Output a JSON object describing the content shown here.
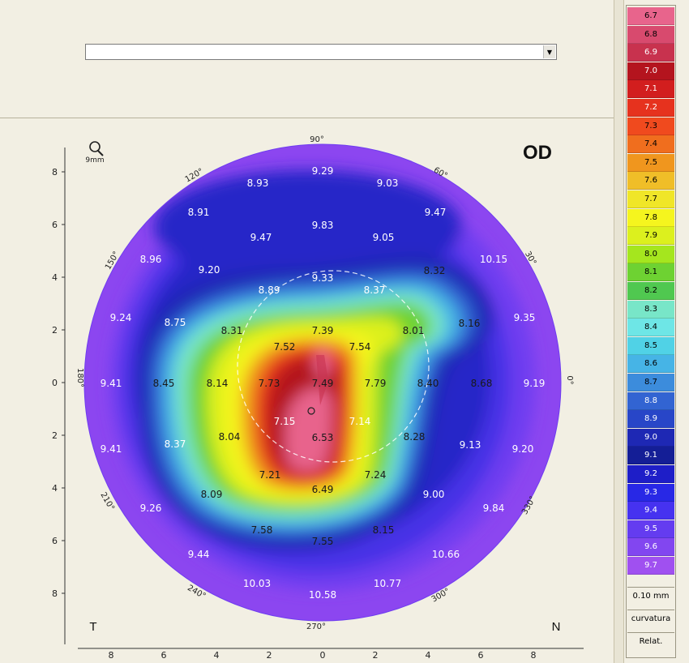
{
  "eye_label": "OD",
  "zoom_label": "9mm",
  "dropdown": {
    "value": ""
  },
  "side_labels": {
    "temporal": "T",
    "nasal": "N"
  },
  "y_axis_ticks": [
    "8",
    "6",
    "4",
    "2",
    "0",
    "2",
    "4",
    "6",
    "8"
  ],
  "x_axis_ticks": [
    "8",
    "6",
    "4",
    "2",
    "0",
    "2",
    "4",
    "6",
    "8"
  ],
  "angle_labels": [
    "90°",
    "60°",
    "30°",
    "0°",
    "330°",
    "300°",
    "270°",
    "240°",
    "210°",
    "180°",
    "150°",
    "120°"
  ],
  "map_values": [
    {
      "label": "9.29",
      "color": "#ffffff"
    },
    {
      "label": "8.93",
      "color": "#ffffff"
    },
    {
      "label": "9.03",
      "color": "#ffffff"
    },
    {
      "label": "8.91",
      "color": "#ffffff"
    },
    {
      "label": "9.83",
      "color": "#ffffff"
    },
    {
      "label": "9.47",
      "color": "#ffffff"
    },
    {
      "label": "9.47",
      "color": "#ffffff"
    },
    {
      "label": "9.05",
      "color": "#ffffff"
    },
    {
      "label": "8.96",
      "color": "#ffffff"
    },
    {
      "label": "10.15",
      "color": "#ffffff"
    },
    {
      "label": "9.20",
      "color": "#ffffff"
    },
    {
      "label": "9.33",
      "color": "#ffffff"
    },
    {
      "label": "8.32",
      "color": "#1a1a1a"
    },
    {
      "label": "8.89",
      "color": "#ffffff"
    },
    {
      "label": "8.37",
      "color": "#ffffff"
    },
    {
      "label": "9.24",
      "color": "#ffffff"
    },
    {
      "label": "8.75",
      "color": "#ffffff"
    },
    {
      "label": "8.31",
      "color": "#1a1a1a"
    },
    {
      "label": "7.39",
      "color": "#1a1a1a"
    },
    {
      "label": "8.01",
      "color": "#1a1a1a"
    },
    {
      "label": "8.16",
      "color": "#1a1a1a"
    },
    {
      "label": "9.35",
      "color": "#ffffff"
    },
    {
      "label": "7.52",
      "color": "#1a1a1a"
    },
    {
      "label": "7.54",
      "color": "#1a1a1a"
    },
    {
      "label": "9.41",
      "color": "#ffffff"
    },
    {
      "label": "8.45",
      "color": "#1a1a1a"
    },
    {
      "label": "8.14",
      "color": "#1a1a1a"
    },
    {
      "label": "7.73",
      "color": "#1a1a1a"
    },
    {
      "label": "7.49",
      "color": "#1a1a1a"
    },
    {
      "label": "7.79",
      "color": "#1a1a1a"
    },
    {
      "label": "8.40",
      "color": "#1a1a1a"
    },
    {
      "label": "8.68",
      "color": "#1a1a1a"
    },
    {
      "label": "9.19",
      "color": "#ffffff"
    },
    {
      "label": "7.15",
      "color": "#ffffff"
    },
    {
      "label": "7.14",
      "color": "#ffffff"
    },
    {
      "label": "6.53",
      "color": "#1a1a1a"
    },
    {
      "label": "9.41",
      "color": "#ffffff"
    },
    {
      "label": "8.37",
      "color": "#ffffff"
    },
    {
      "label": "8.04",
      "color": "#1a1a1a"
    },
    {
      "label": "8.28",
      "color": "#1a1a1a"
    },
    {
      "label": "9.13",
      "color": "#ffffff"
    },
    {
      "label": "9.20",
      "color": "#ffffff"
    },
    {
      "label": "7.21",
      "color": "#1a1a1a"
    },
    {
      "label": "7.24",
      "color": "#1a1a1a"
    },
    {
      "label": "6.49",
      "color": "#1a1a1a"
    },
    {
      "label": "8.09",
      "color": "#1a1a1a"
    },
    {
      "label": "9.26",
      "color": "#ffffff"
    },
    {
      "label": "9.00",
      "color": "#ffffff"
    },
    {
      "label": "9.84",
      "color": "#ffffff"
    },
    {
      "label": "7.58",
      "color": "#1a1a1a"
    },
    {
      "label": "7.55",
      "color": "#1a1a1a"
    },
    {
      "label": "8.15",
      "color": "#1a1a1a"
    },
    {
      "label": "9.44",
      "color": "#ffffff"
    },
    {
      "label": "10.66",
      "color": "#ffffff"
    },
    {
      "label": "10.03",
      "color": "#ffffff"
    },
    {
      "label": "10.77",
      "color": "#ffffff"
    },
    {
      "label": "10.58",
      "color": "#ffffff"
    }
  ],
  "color_scale": [
    {
      "label": "6.7",
      "bg": "#e8648c",
      "fg": "#000"
    },
    {
      "label": "6.8",
      "bg": "#d84a6e",
      "fg": "#000"
    },
    {
      "label": "6.9",
      "bg": "#c8324e",
      "fg": "#fff"
    },
    {
      "label": "7.0",
      "bg": "#b4141e",
      "fg": "#fff"
    },
    {
      "label": "7.1",
      "bg": "#d21e1e",
      "fg": "#fff"
    },
    {
      "label": "7.2",
      "bg": "#e6321e",
      "fg": "#fff"
    },
    {
      "label": "7.3",
      "bg": "#f04a1e",
      "fg": "#000"
    },
    {
      "label": "7.4",
      "bg": "#f06e1e",
      "fg": "#000"
    },
    {
      "label": "7.5",
      "bg": "#f0961e",
      "fg": "#000"
    },
    {
      "label": "7.6",
      "bg": "#f0be28",
      "fg": "#000"
    },
    {
      "label": "7.7",
      "bg": "#f0e628",
      "fg": "#000"
    },
    {
      "label": "7.8",
      "bg": "#f5f51e",
      "fg": "#000"
    },
    {
      "label": "7.9",
      "bg": "#dcf01e",
      "fg": "#000"
    },
    {
      "label": "8.0",
      "bg": "#a5e61e",
      "fg": "#000"
    },
    {
      "label": "8.1",
      "bg": "#6ed232",
      "fg": "#000"
    },
    {
      "label": "8.2",
      "bg": "#50c850",
      "fg": "#000"
    },
    {
      "label": "8.3",
      "bg": "#78e6c8",
      "fg": "#000"
    },
    {
      "label": "8.4",
      "bg": "#6ee6e6",
      "fg": "#000"
    },
    {
      "label": "8.5",
      "bg": "#50d2e6",
      "fg": "#000"
    },
    {
      "label": "8.6",
      "bg": "#46b4e6",
      "fg": "#000"
    },
    {
      "label": "8.7",
      "bg": "#3c8cdc",
      "fg": "#000"
    },
    {
      "label": "8.8",
      "bg": "#3264d2",
      "fg": "#fff"
    },
    {
      "label": "8.9",
      "bg": "#2846c8",
      "fg": "#fff"
    },
    {
      "label": "9.0",
      "bg": "#1e28b4",
      "fg": "#fff"
    },
    {
      "label": "9.1",
      "bg": "#141e96",
      "fg": "#fff"
    },
    {
      "label": "9.2",
      "bg": "#1e1ec8",
      "fg": "#fff"
    },
    {
      "label": "9.3",
      "bg": "#2828e6",
      "fg": "#fff"
    },
    {
      "label": "9.4",
      "bg": "#4632f0",
      "fg": "#fff"
    },
    {
      "label": "9.5",
      "bg": "#643cf0",
      "fg": "#fff"
    },
    {
      "label": "9.6",
      "bg": "#8246f0",
      "fg": "#fff"
    },
    {
      "label": "9.7",
      "bg": "#a050f0",
      "fg": "#fff"
    }
  ],
  "scale_buttons": {
    "step": "0.10 mm",
    "mode": "curvatura",
    "relative": "Relat."
  }
}
